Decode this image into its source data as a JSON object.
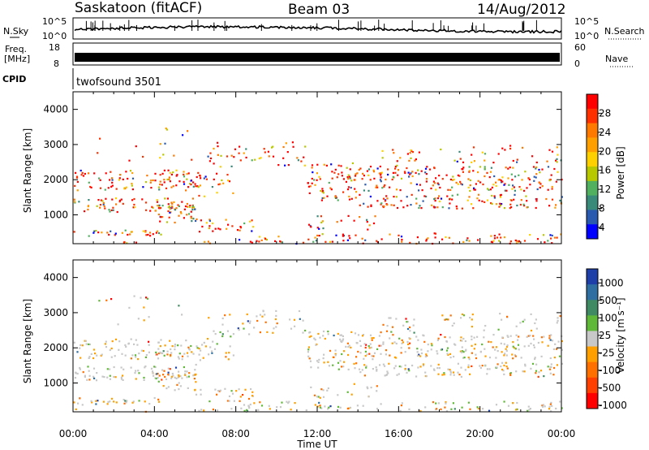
{
  "header": {
    "station": "Saskatoon (fitACF)",
    "beam": "Beam 03",
    "date": "14/Aug/2012"
  },
  "labels": {
    "nsky": "N.Sky",
    "nsearch": "N.Search",
    "freq_line1": "Freq.",
    "freq_line2": "[MHz]",
    "nave": "Nave",
    "cpid": "CPID",
    "cpid_value": "twofsound 3501",
    "time_axis": "Time UT",
    "range_axis": "Slant Range [km]"
  },
  "top_panels": {
    "noise": {
      "left_ticks": [
        "10^5",
        "10^0"
      ],
      "right_ticks": [
        "10^5",
        "10^0"
      ]
    },
    "freq": {
      "left_ticks": [
        "18",
        "8"
      ],
      "right_ticks": [
        "60",
        "0"
      ]
    }
  },
  "chart_data": [
    {
      "type": "heatmap",
      "name": "power",
      "ylabel": "Slant Range [km]",
      "xlabel": "Time UT",
      "x_ticks": [
        "00:00",
        "04:00",
        "08:00",
        "12:00",
        "16:00",
        "20:00",
        "00:00"
      ],
      "y_ticks": [
        1000,
        2000,
        3000,
        4000
      ],
      "xlim_hours": [
        0,
        24
      ],
      "ylim_km": [
        180,
        4500
      ],
      "colorbar": {
        "label": "Power [dB]",
        "ticks": [
          "28",
          "24",
          "20",
          "16",
          "12",
          "8",
          "4"
        ],
        "colors": [
          "#ff0000",
          "#ff3000",
          "#ff7800",
          "#ffa000",
          "#ffd000",
          "#b8c800",
          "#50b060",
          "#3a8a7a",
          "#2a5ab0",
          "#0000ff"
        ]
      }
    },
    {
      "type": "heatmap",
      "name": "velocity",
      "ylabel": "Slant Range [km]",
      "xlabel": "Time UT",
      "x_ticks": [
        "00:00",
        "04:00",
        "08:00",
        "12:00",
        "16:00",
        "20:00",
        "00:00"
      ],
      "y_ticks": [
        1000,
        2000,
        3000,
        4000
      ],
      "xlim_hours": [
        0,
        24
      ],
      "ylim_km": [
        180,
        4500
      ],
      "colorbar": {
        "label": "Velocity [m s⁻¹]",
        "ticks": [
          "1000",
          "500",
          "100",
          "25",
          "-25",
          "-100",
          "-500",
          "-1000"
        ],
        "colors": [
          "#1f3fa8",
          "#2e6ea0",
          "#3f8a62",
          "#60b838",
          "#c8c8c8",
          "#ffa000",
          "#ff7000",
          "#ff4000",
          "#ff0000"
        ]
      }
    }
  ]
}
